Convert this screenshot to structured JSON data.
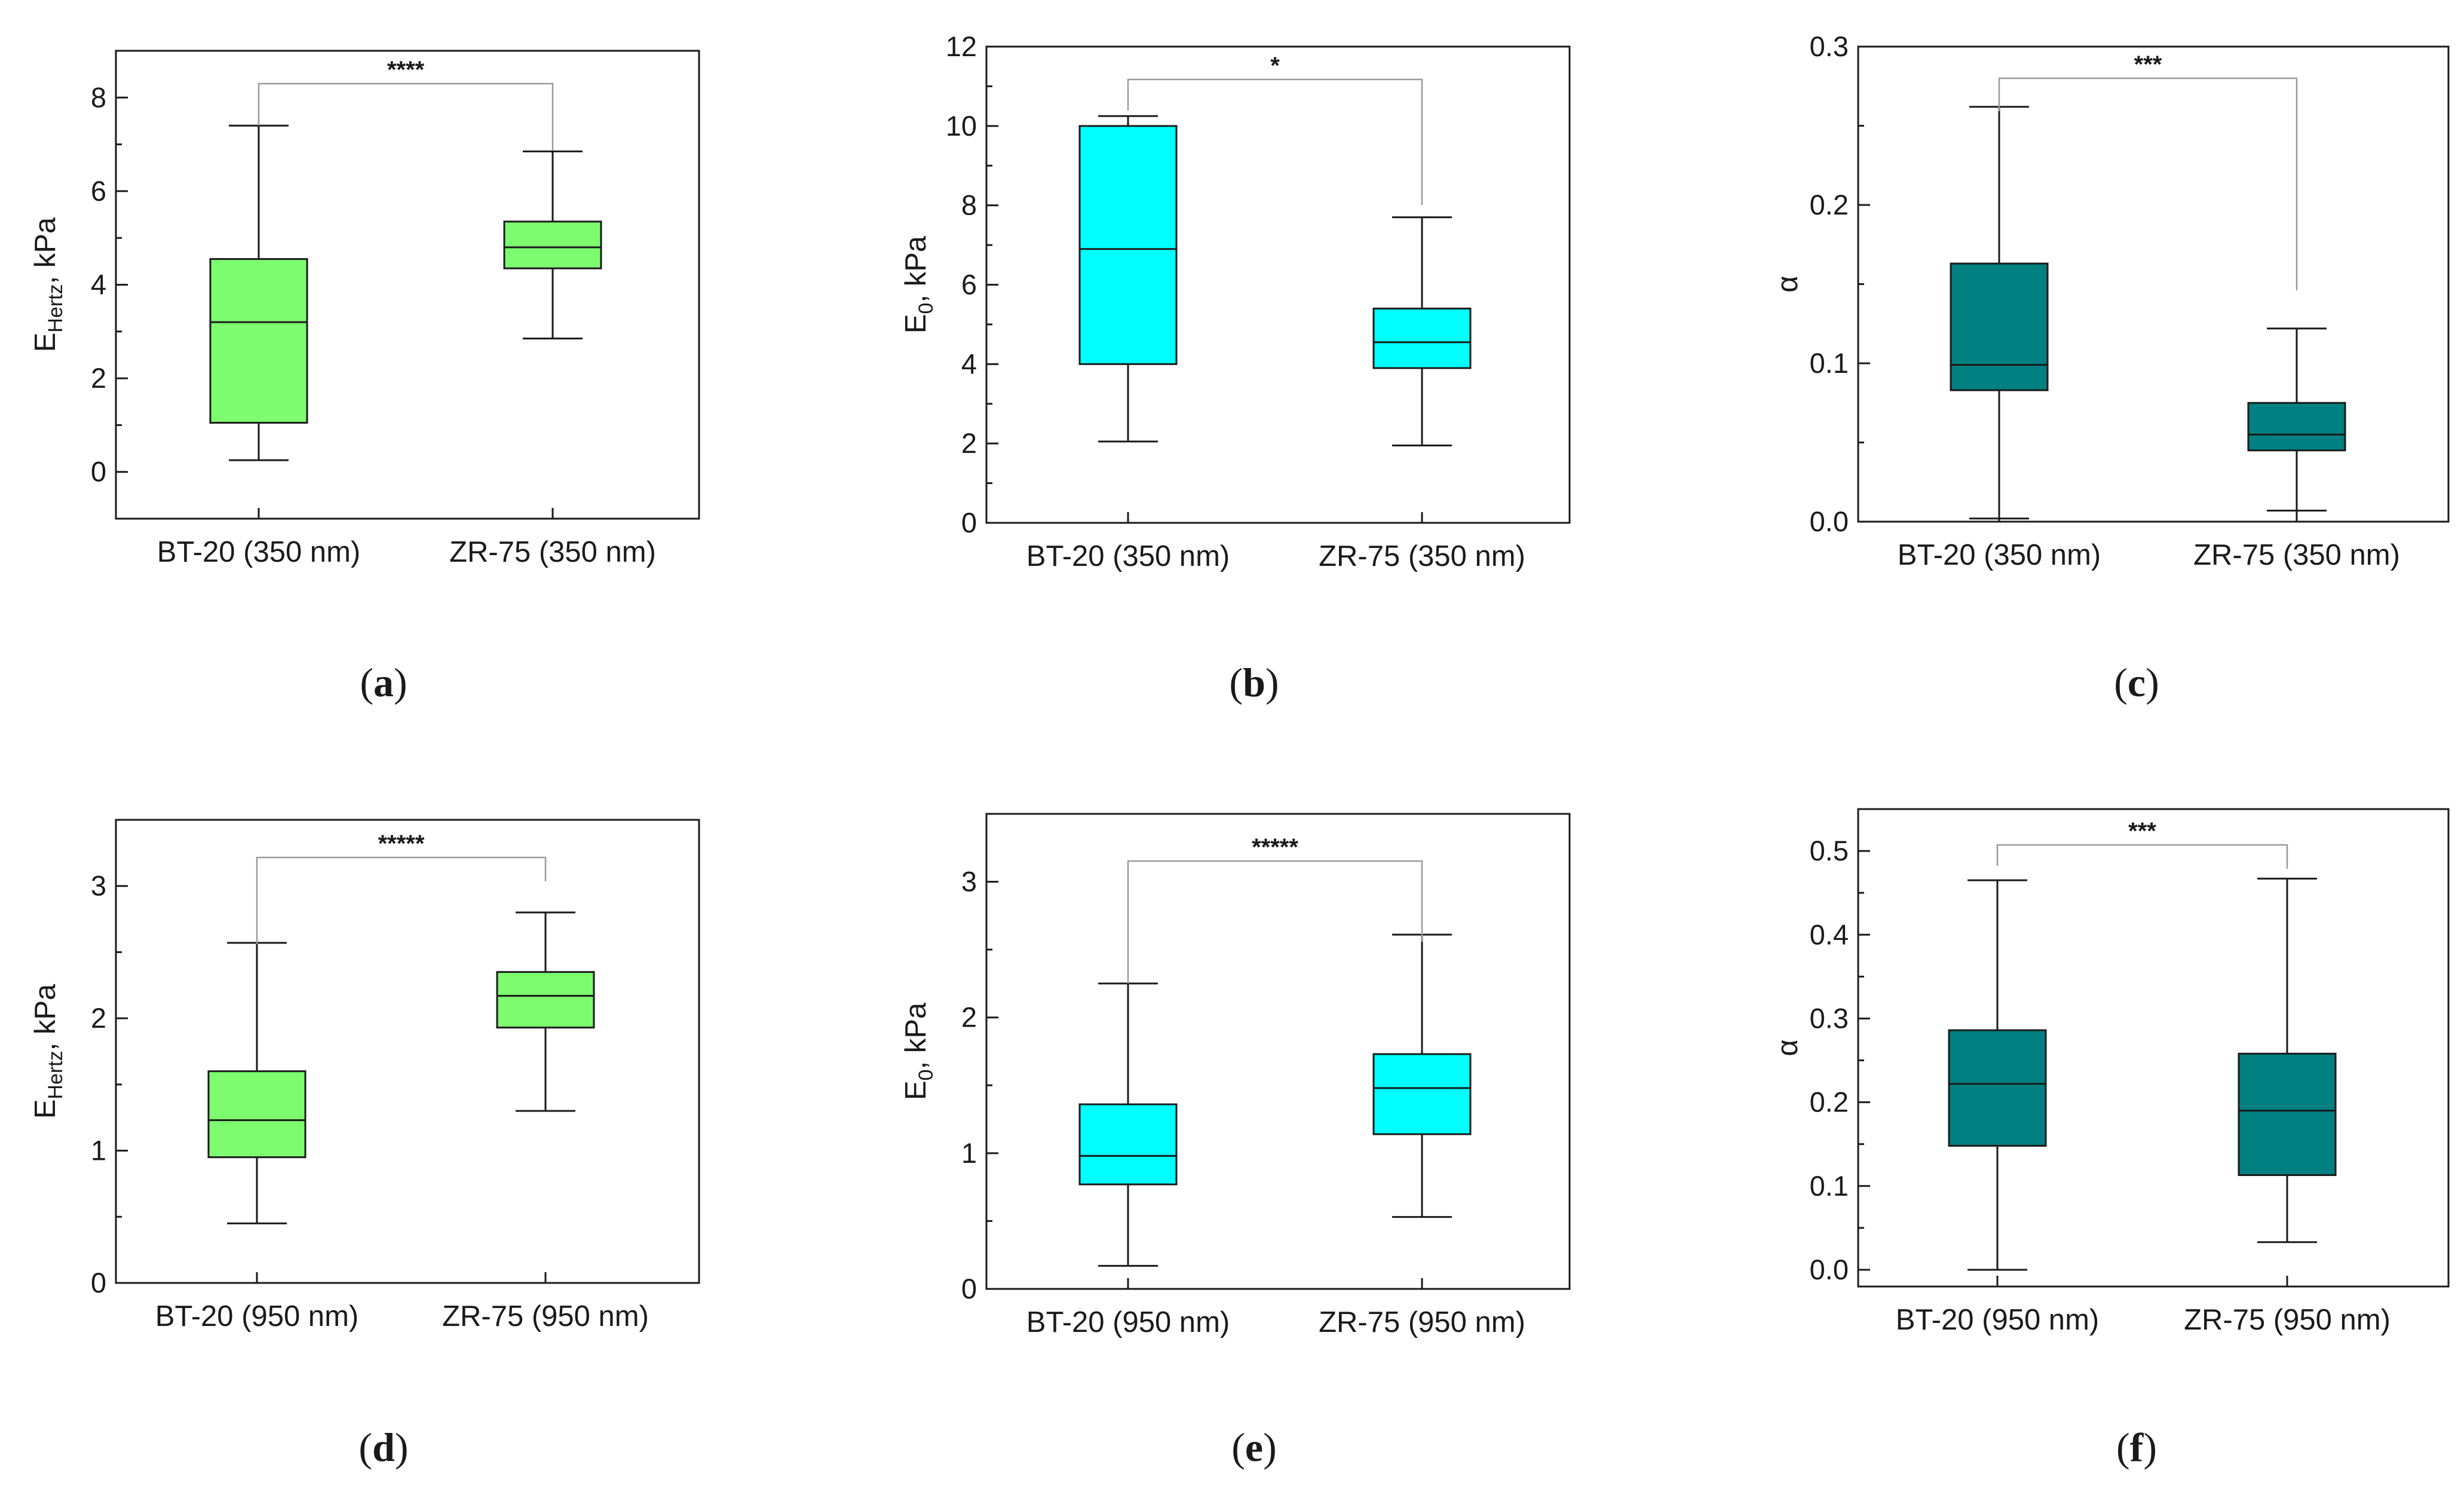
{
  "chart_data": [
    {
      "id": "a",
      "type": "boxplot",
      "panel_label": "a",
      "ylabel": "E",
      "ylabel_sub": "Hertz",
      "ylabel_unit": ", kPa",
      "ylim": [
        -1,
        9
      ],
      "yticks": [
        0,
        2,
        4,
        6,
        8
      ],
      "yticks_labels": [
        "0",
        "2",
        "4",
        "6",
        "8"
      ],
      "minor_step": 1,
      "fill_color": "#7CFC6E",
      "significance": "****",
      "categories": [
        "BT-20 (350 nm)",
        "ZR-75 (350 nm)"
      ],
      "boxes": [
        {
          "min": 0.25,
          "q1": 1.05,
          "median": 3.2,
          "q3": 4.55,
          "max": 7.4
        },
        {
          "min": 2.85,
          "q1": 4.35,
          "median": 4.8,
          "q3": 5.35,
          "max": 6.85
        }
      ]
    },
    {
      "id": "b",
      "type": "boxplot",
      "panel_label": "b",
      "ylabel": "E",
      "ylabel_sub": "0",
      "ylabel_unit": ", kPa",
      "ylim": [
        0,
        12
      ],
      "yticks": [
        0,
        2,
        4,
        6,
        8,
        10,
        12
      ],
      "yticks_labels": [
        "0",
        "2",
        "4",
        "6",
        "8",
        "10",
        "12"
      ],
      "minor_step": 1,
      "fill_color": "#00FFFF",
      "significance": "*",
      "categories": [
        "BT-20 (350 nm)",
        "ZR-75 (350 nm)"
      ],
      "boxes": [
        {
          "min": 2.05,
          "q1": 4.0,
          "median": 6.9,
          "q3": 10.0,
          "max": 10.25
        },
        {
          "min": 1.95,
          "q1": 3.9,
          "median": 4.55,
          "q3": 5.4,
          "max": 7.7
        }
      ]
    },
    {
      "id": "c",
      "type": "boxplot",
      "panel_label": "c",
      "ylabel": "α",
      "ylabel_sub": "",
      "ylabel_unit": "",
      "ylim": [
        0,
        0.3
      ],
      "yticks": [
        0,
        0.1,
        0.2,
        0.3
      ],
      "yticks_labels": [
        "0.0",
        "0.1",
        "0.2",
        "0.3"
      ],
      "minor_step": 0.05,
      "fill_color": "#008080",
      "significance": "***",
      "categories": [
        "BT-20 (350 nm)",
        "ZR-75 (350 nm)"
      ],
      "boxes": [
        {
          "min": 0.002,
          "q1": 0.083,
          "median": 0.099,
          "q3": 0.163,
          "max": 0.262
        },
        {
          "min": 0.007,
          "q1": 0.045,
          "median": 0.055,
          "q3": 0.075,
          "max": 0.122
        }
      ]
    },
    {
      "id": "d",
      "type": "boxplot",
      "panel_label": "d",
      "ylabel": "E",
      "ylabel_sub": "Hertz",
      "ylabel_unit": ", kPa",
      "ylim": [
        0,
        3.5
      ],
      "yticks": [
        0,
        1,
        2,
        3
      ],
      "yticks_labels": [
        "0",
        "1",
        "2",
        "3"
      ],
      "minor_step": 0.5,
      "fill_color": "#7CFC6E",
      "significance": "*****",
      "categories": [
        "BT-20 (950 nm)",
        "ZR-75 (950 nm)"
      ],
      "boxes": [
        {
          "min": 0.45,
          "q1": 0.95,
          "median": 1.23,
          "q3": 1.6,
          "max": 2.57
        },
        {
          "min": 1.3,
          "q1": 1.93,
          "median": 2.17,
          "q3": 2.35,
          "max": 2.8
        }
      ]
    },
    {
      "id": "e",
      "type": "boxplot",
      "panel_label": "e",
      "ylabel": "E",
      "ylabel_sub": "0",
      "ylabel_unit": ", kPa",
      "ylim": [
        0,
        3.5
      ],
      "yticks": [
        0,
        1,
        2,
        3
      ],
      "yticks_labels": [
        "0",
        "1",
        "2",
        "3"
      ],
      "minor_step": 0.5,
      "fill_color": "#00FFFF",
      "significance": "*****",
      "categories": [
        "BT-20 (950 nm)",
        "ZR-75 (950 nm)"
      ],
      "boxes": [
        {
          "min": 0.17,
          "q1": 0.77,
          "median": 0.98,
          "q3": 1.36,
          "max": 2.25
        },
        {
          "min": 0.53,
          "q1": 1.14,
          "median": 1.48,
          "q3": 1.73,
          "max": 2.61
        }
      ]
    },
    {
      "id": "f",
      "type": "boxplot",
      "panel_label": "f",
      "ylabel": "α",
      "ylabel_sub": "",
      "ylabel_unit": "",
      "ylim": [
        -0.02,
        0.55
      ],
      "yticks": [
        0,
        0.1,
        0.2,
        0.3,
        0.4,
        0.5
      ],
      "yticks_labels": [
        "0.0",
        "0.1",
        "0.2",
        "0.3",
        "0.4",
        "0.5"
      ],
      "minor_step": 0.05,
      "fill_color": "#008080",
      "significance": "***",
      "categories": [
        "BT-20 (950 nm)",
        "ZR-75 (950 nm)"
      ],
      "boxes": [
        {
          "min": 0.0,
          "q1": 0.148,
          "median": 0.222,
          "q3": 0.286,
          "max": 0.465
        },
        {
          "min": 0.033,
          "q1": 0.113,
          "median": 0.19,
          "q3": 0.258,
          "max": 0.467
        }
      ]
    }
  ]
}
